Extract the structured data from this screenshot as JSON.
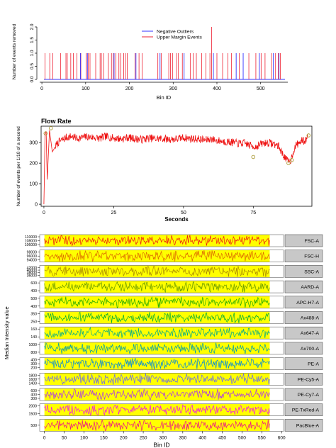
{
  "chart_data": [
    {
      "type": "line",
      "panel": "outliers",
      "xlabel": "Bin ID",
      "ylabel": "Number of events removed",
      "xlim": [
        -5,
        562
      ],
      "ylim": [
        0,
        2
      ],
      "xticks": [
        0,
        100,
        200,
        300,
        400,
        500
      ],
      "yticks": [
        "0.0",
        "0.5",
        "1.0",
        "1.5",
        "2.0"
      ],
      "legend": {
        "placement": "top-center",
        "entries": [
          "Negative Outliers",
          "Upper Margin Events"
        ]
      },
      "series": [
        {
          "name": "Negative Outliers",
          "color": "#3333ff",
          "bins": [
            88,
            104,
            165,
            215,
            270,
            325,
            392,
            444,
            460,
            497,
            529,
            542
          ]
        },
        {
          "name": "Upper Margin Events",
          "color": "#ee2233",
          "bins": [
            7,
            18,
            25,
            43,
            55,
            58,
            66,
            72,
            80,
            89,
            101,
            106,
            110,
            123,
            133,
            136,
            141,
            152,
            159,
            163,
            169,
            176,
            180,
            187,
            191,
            195,
            213,
            222,
            229,
            265,
            273,
            290,
            294,
            299,
            308,
            312,
            321,
            339,
            346,
            353,
            365,
            375,
            384,
            388,
            400,
            413,
            425,
            433,
            451,
            473,
            489,
            501,
            510,
            525,
            534,
            540,
            545
          ],
          "tall_bin": 388,
          "tall_value": 2
        }
      ]
    },
    {
      "type": "line",
      "panel": "flowrate",
      "title": "Flow Rate",
      "xlabel": "Seconds",
      "ylabel": "Number of events per 1/10 of a second",
      "xlim": [
        -1,
        96
      ],
      "ylim": [
        -10,
        380
      ],
      "xticks": [
        0,
        25,
        50,
        75
      ],
      "yticks": [
        0,
        100,
        200,
        300
      ],
      "color": "#ee1111",
      "x": [
        0,
        0.4,
        0.8,
        1.2,
        2,
        3,
        5,
        8,
        10,
        12,
        15,
        18,
        20,
        22,
        25,
        28,
        30,
        32,
        35,
        38,
        40,
        42,
        45,
        48,
        50,
        52,
        55,
        58,
        60,
        62,
        65,
        68,
        70,
        72,
        74,
        76,
        78,
        80,
        82,
        84,
        85.5,
        86.5,
        87.5,
        88.5,
        89.5,
        90.5,
        91.5,
        92.5,
        93.5,
        94.5
      ],
      "y": [
        0,
        340,
        355,
        120,
        360,
        255,
        300,
        325,
        330,
        320,
        328,
        325,
        320,
        330,
        322,
        318,
        325,
        320,
        315,
        322,
        318,
        320,
        316,
        318,
        325,
        320,
        318,
        312,
        318,
        310,
        305,
        300,
        295,
        298,
        285,
        280,
        295,
        300,
        295,
        285,
        245,
        225,
        205,
        215,
        265,
        290,
        300,
        310,
        305,
        330
      ],
      "outlier_points": [
        [
          0.6,
          345
        ],
        [
          2.5,
          370
        ],
        [
          75,
          230
        ],
        [
          87.6,
          200
        ],
        [
          88.8,
          215
        ],
        [
          94.8,
          335
        ]
      ]
    },
    {
      "type": "line",
      "panel": "median-intensity",
      "xlabel": "Bin ID",
      "ylabel": "Median Intensity value",
      "xlim": [
        -12,
        605
      ],
      "good_region": [
        0,
        570
      ],
      "xticks": [
        0,
        50,
        100,
        150,
        200,
        250,
        300,
        350,
        400,
        450,
        500,
        550,
        600
      ],
      "rows": [
        {
          "channel": "FSC-A",
          "ticks": [
            "110000",
            "108000",
            "106000"
          ],
          "color": "#ee1111",
          "mid": 108000,
          "amp": 2500
        },
        {
          "channel": "FSC-H",
          "ticks": [
            "98000",
            "96000",
            "94000"
          ],
          "color": "#dd6600",
          "mid": 96000,
          "amp": 2200
        },
        {
          "channel": "SSC-A",
          "ticks": [
            "42000",
            "40000",
            "38000",
            "36000"
          ],
          "color": "#aa8800",
          "mid": 39000,
          "amp": 2600
        },
        {
          "channel": "AARD-A",
          "ticks": [
            "600",
            "400"
          ],
          "color": "#669900",
          "mid": 500,
          "amp": 120
        },
        {
          "channel": "APC-H7-A",
          "ticks": [
            "500",
            "400"
          ],
          "color": "#22aa00",
          "mid": 450,
          "amp": 60
        },
        {
          "channel": "Ax488-A",
          "ticks": [
            "350",
            "250"
          ],
          "color": "#00aa33",
          "mid": 300,
          "amp": 60
        },
        {
          "channel": "Ax647-A",
          "ticks": [
            "160",
            "140"
          ],
          "color": "#00aa88",
          "mid": 150,
          "amp": 12
        },
        {
          "channel": "Ax700-A",
          "ticks": [
            "1000",
            "800"
          ],
          "color": "#0099aa",
          "mid": 900,
          "amp": 120
        },
        {
          "channel": "PE-A",
          "ticks": [
            "400",
            "300",
            "200"
          ],
          "color": "#0088dd",
          "mid": 300,
          "amp": 110
        },
        {
          "channel": "PE-Cy5-A",
          "ticks": [
            "1800",
            "1600",
            "1400"
          ],
          "color": "#6666ee",
          "mid": 1600,
          "amp": 230
        },
        {
          "channel": "PE-Cy7-A",
          "ticks": [
            "600",
            "400",
            "300"
          ],
          "color": "#aa33ee",
          "mid": 450,
          "amp": 140
        },
        {
          "channel": "PE-TxRed-A",
          "ticks": [
            "2000",
            "1500"
          ],
          "color": "#ee11ee",
          "mid": 1750,
          "amp": 380
        },
        {
          "channel": "PacBlue-A",
          "ticks": [
            "500"
          ],
          "color": "#ee1188",
          "mid": 500,
          "amp": 110
        }
      ]
    }
  ]
}
